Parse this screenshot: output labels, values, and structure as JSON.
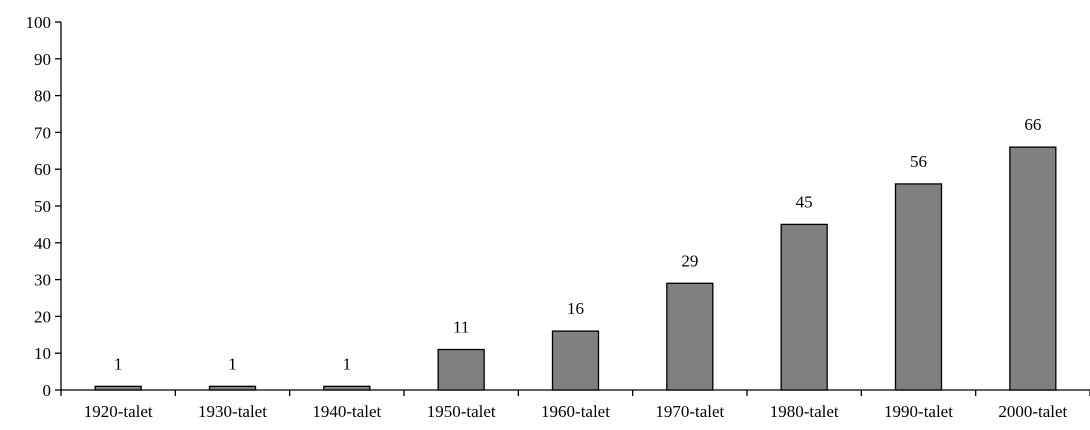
{
  "chart_data": {
    "type": "bar",
    "categories": [
      "1920-talet",
      "1930-talet",
      "1940-talet",
      "1950-talet",
      "1960-talet",
      "1970-talet",
      "1980-talet",
      "1990-talet",
      "2000-talet"
    ],
    "values": [
      1,
      1,
      1,
      11,
      16,
      29,
      45,
      56,
      66
    ],
    "data_labels": [
      "1",
      "1",
      "1",
      "11",
      "16",
      "29",
      "45",
      "56",
      "66"
    ],
    "yticks": [
      "0",
      "10",
      "20",
      "30",
      "40",
      "50",
      "60",
      "70",
      "80",
      "90",
      "100"
    ],
    "ylim": [
      0,
      100
    ],
    "ytick_step": 10,
    "grid": false,
    "legend": "none",
    "title": "",
    "xlabel": "",
    "ylabel": "",
    "colors": {
      "bar_fill": "#808080",
      "bar_stroke": "#000000",
      "axis": "#000000",
      "text": "#000000"
    }
  }
}
